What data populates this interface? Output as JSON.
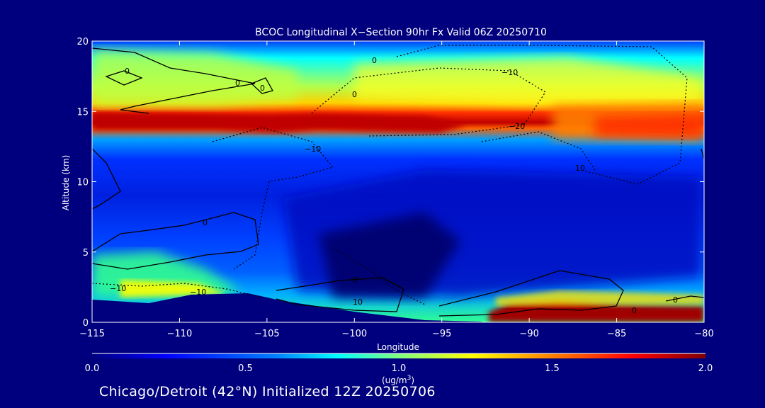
{
  "chart_data": {
    "type": "heatmap",
    "title": "BCOC Longitudinal X−Section 90hr  Fx Valid 06Z 20250710",
    "xlabel": "Longitude",
    "ylabel": "Altitude (km)",
    "xlim": [
      -115,
      -80
    ],
    "ylim": [
      0,
      20
    ],
    "x_ticks": [
      -115,
      -110,
      -105,
      -100,
      -95,
      -90,
      -85,
      -80
    ],
    "x_tick_labels": [
      "−115",
      "−110",
      "−105",
      "−100",
      "−95",
      "−90",
      "−85",
      "−80"
    ],
    "y_ticks": [
      0,
      5,
      10,
      15,
      20
    ],
    "y_tick_labels": [
      "0",
      "5",
      "10",
      "15",
      "20"
    ],
    "colorbar": {
      "min": 0.0,
      "max": 2.0,
      "tick_labels": [
        "0.0",
        "0.5",
        "1.0",
        "1.5",
        "2.0"
      ],
      "unit_line1": "(ug/m",
      "unit_sup": "3",
      "unit_line2": ")",
      "colormap": [
        "#00007f",
        "#0000ff",
        "#0080ff",
        "#00ffff",
        "#80ff80",
        "#ffff00",
        "#ff8000",
        "#ff0000",
        "#7f0000"
      ]
    },
    "contour_labels": [
      "0",
      "0",
      "0",
      "0",
      "0",
      "0",
      "0",
      "0",
      "0",
      "−10",
      "−10",
      "−10",
      "−10",
      "−20",
      "10",
      "10"
    ],
    "concentration_field_description_points": [
      {
        "lon": -112,
        "alt": 14.5,
        "value": 1.9
      },
      {
        "lon": -100,
        "alt": 14.5,
        "value": 1.85
      },
      {
        "lon": -85,
        "alt": 14,
        "value": 1.6
      },
      {
        "lon": -100,
        "alt": 17,
        "value": 1.0
      },
      {
        "lon": -100,
        "alt": 11,
        "value": 0.35
      },
      {
        "lon": -100,
        "alt": 5,
        "value": 0.05
      },
      {
        "lon": -88,
        "alt": 0.6,
        "value": 2.0
      },
      {
        "lon": -110,
        "alt": 2.5,
        "value": 1.0
      }
    ]
  },
  "footer": {
    "text": "Chicago/Detroit (42°N) Initialized 12Z 20250706"
  }
}
